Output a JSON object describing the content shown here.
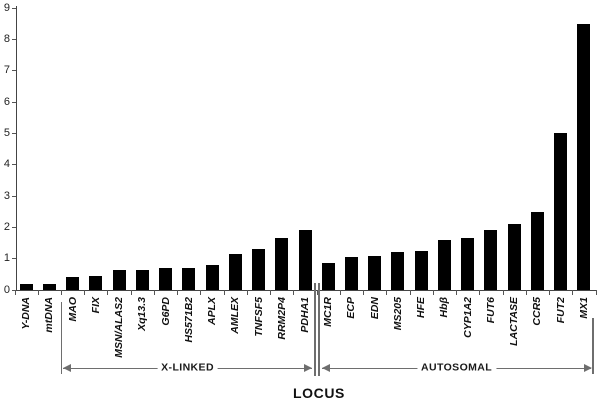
{
  "chart_data": {
    "type": "bar",
    "title": "",
    "xlabel": "LOCUS",
    "ylabel": "",
    "ylim": [
      0,
      9
    ],
    "yticks": [
      0,
      1,
      2,
      3,
      4,
      5,
      6,
      7,
      8,
      9
    ],
    "grid": false,
    "bar_color": "#000000",
    "axis_color": "#444444",
    "annotation_color": "#6e6e6e",
    "categories": [
      "Y-DNA",
      "mtDNA",
      "MAO",
      "FIX",
      "MSN/ALAS2",
      "Xq13.3",
      "G6PD",
      "HS571B2",
      "APLX",
      "AMLEX",
      "TNFSF5",
      "RRM2P4",
      "PDHA1",
      "MC1R",
      "ECP",
      "EDN",
      "MS205",
      "HFE",
      "Hbβ",
      "CYP1A2",
      "FUT6",
      "LACTASE",
      "CCR5",
      "FUT2",
      "MX1"
    ],
    "values": [
      0.2,
      0.2,
      0.4,
      0.45,
      0.65,
      0.65,
      0.7,
      0.7,
      0.8,
      1.15,
      1.3,
      1.65,
      1.9,
      0.85,
      1.05,
      1.1,
      1.2,
      1.25,
      1.6,
      1.65,
      1.9,
      2.1,
      2.5,
      5.0,
      8.5
    ],
    "groups": [
      {
        "label": "X-LINKED",
        "start_index": 2,
        "end_index": 12
      },
      {
        "label": "AUTOSOMAL",
        "start_index": 13,
        "end_index": 24
      }
    ],
    "separator_between": [
      12,
      13
    ],
    "legend": null
  }
}
